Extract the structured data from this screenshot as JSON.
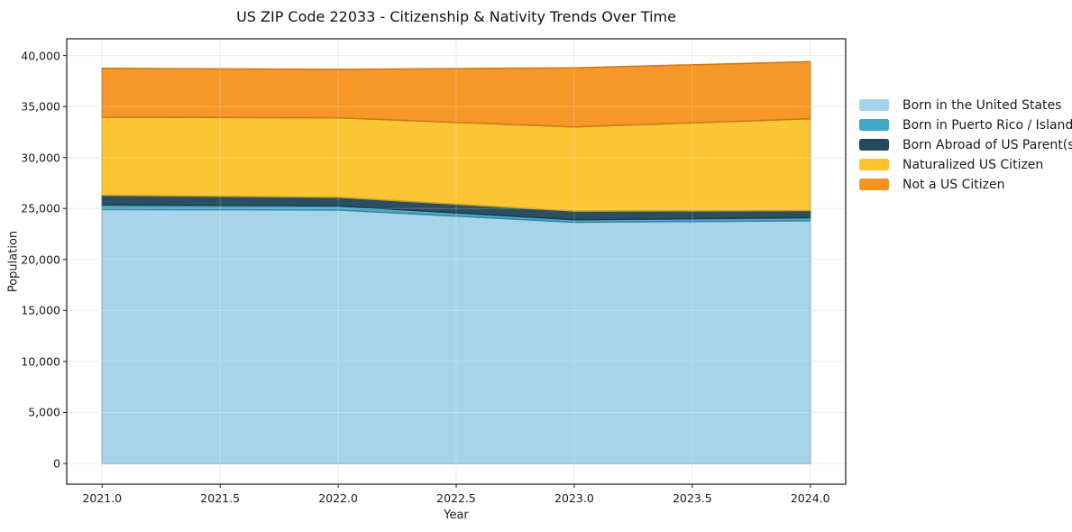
{
  "chart_data": {
    "type": "area",
    "stacked": true,
    "title": "US ZIP Code 22033 - Citizenship & Nativity Trends Over Time",
    "xlabel": "Year",
    "ylabel": "Population",
    "x": [
      2021,
      2022,
      2023,
      2024
    ],
    "series": [
      {
        "name": "Born in the United States",
        "color": "#a5d3e9",
        "values": [
          24900,
          24850,
          23650,
          23800
        ]
      },
      {
        "name": "Born in Puerto Rico / Islands",
        "color": "#43a6c6",
        "values": [
          450,
          400,
          250,
          300
        ]
      },
      {
        "name": "Born Abroad of US Parent(s)",
        "color": "#24485c",
        "values": [
          950,
          850,
          850,
          700
        ]
      },
      {
        "name": "Naturalized US Citizen",
        "color": "#fcc32d",
        "values": [
          7650,
          7800,
          8250,
          9000
        ]
      },
      {
        "name": "Not a US Citizen",
        "color": "#f79421",
        "values": [
          4800,
          4750,
          5800,
          5600
        ]
      }
    ],
    "x_ticks": {
      "values": [
        2021,
        2021.5,
        2022,
        2022.5,
        2023,
        2023.5,
        2024
      ],
      "labels": [
        "2021.0",
        "2021.5",
        "2022.0",
        "2022.5",
        "2023.0",
        "2023.5",
        "2024.0"
      ]
    },
    "y_ticks": {
      "values": [
        0,
        5000,
        10000,
        15000,
        20000,
        25000,
        30000,
        35000,
        40000
      ],
      "labels": [
        "0",
        "5,000",
        "10,000",
        "15,000",
        "20,000",
        "25,000",
        "30,000",
        "35,000",
        "40,000"
      ]
    },
    "xlim": [
      2020.85,
      2024.15
    ],
    "ylim": [
      -2034,
      41645
    ],
    "grid": true,
    "legend_position": "right of plot",
    "spine_color": "#1a1a1a",
    "grid_color": "#e8e8e8"
  }
}
